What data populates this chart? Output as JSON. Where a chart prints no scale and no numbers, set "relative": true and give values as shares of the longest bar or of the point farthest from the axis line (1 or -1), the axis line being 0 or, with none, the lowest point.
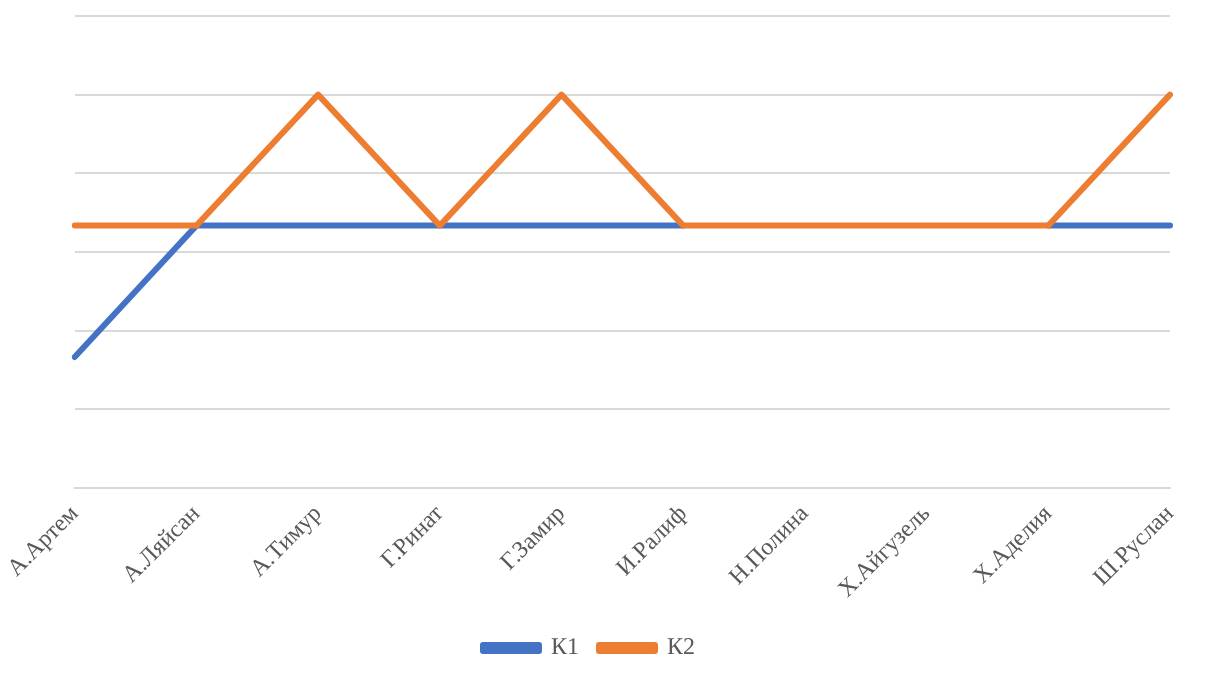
{
  "chart_data": {
    "type": "line",
    "relative": true,
    "categories": [
      "А.Артем",
      "А.Ляйсан",
      "А.Тимур",
      "Г.Ринат",
      "Г.Замир",
      "И.Ралиф",
      "Н.Полина",
      "Х.Айгузель",
      "Х.Аделия",
      "Ш.Руслан"
    ],
    "series": [
      {
        "name": "К1",
        "color": "#4472c4",
        "values": [
          0.333,
          0.667,
          0.667,
          0.667,
          0.667,
          0.667,
          null,
          null,
          0.667,
          0.667
        ]
      },
      {
        "name": "К2",
        "color": "#ed7d31",
        "values": [
          0.667,
          0.667,
          1,
          0.667,
          1,
          0.667,
          0.667,
          0.667,
          0.667,
          1
        ]
      }
    ],
    "grid": "y",
    "legend": "bottom",
    "marker": "none",
    "line_style": "solid"
  }
}
